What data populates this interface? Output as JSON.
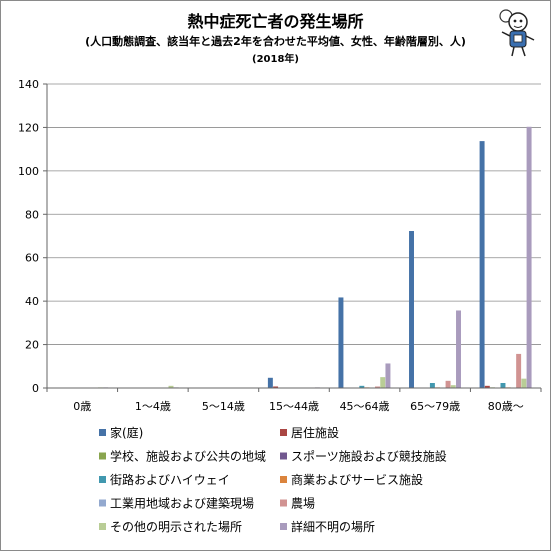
{
  "chart_data": {
    "type": "bar",
    "title": "熱中症死亡者の発生場所",
    "subtitle": "(人口動態調査、該当年と過去2年を合わせた平均値、女性、年齢階層別、人)",
    "subtitle2": "(2018年)",
    "categories": [
      "0歳",
      "1〜4歳",
      "5〜14歳",
      "15〜44歳",
      "45〜64歳",
      "65〜79歳",
      "80歳〜"
    ],
    "ylim": [
      0,
      140
    ],
    "yticks": [
      0,
      20,
      40,
      60,
      80,
      100,
      120,
      140
    ],
    "grid": true,
    "legend_position": "bottom",
    "series": [
      {
        "name": "家(庭)",
        "color": "#4572a7",
        "values": [
          0,
          0,
          0,
          4.7,
          41.7,
          72.3,
          113.7
        ]
      },
      {
        "name": "居住施設",
        "color": "#aa4643",
        "values": [
          0,
          0,
          0,
          0.7,
          0,
          0,
          1.0
        ]
      },
      {
        "name": "学校、施設および公共の地域",
        "color": "#89a54e",
        "values": [
          0,
          0,
          0,
          0,
          0,
          0,
          0.3
        ]
      },
      {
        "name": "スポーツ施設および競技施設",
        "color": "#71588f",
        "values": [
          0,
          0,
          0,
          0,
          0,
          0,
          0
        ]
      },
      {
        "name": "街路およびハイウェイ",
        "color": "#4198af",
        "values": [
          0,
          0,
          0,
          0,
          1.0,
          2.3,
          2.3
        ]
      },
      {
        "name": "商業およびサービス施設",
        "color": "#db843d",
        "values": [
          0,
          0,
          0,
          0,
          0.3,
          0.3,
          0.3
        ]
      },
      {
        "name": "工業用地域および建築現場",
        "color": "#93a9cf",
        "values": [
          0,
          0,
          0,
          0,
          0,
          0,
          0
        ]
      },
      {
        "name": "農場",
        "color": "#d19392",
        "values": [
          0,
          0,
          0,
          0,
          0.7,
          3.3,
          15.7
        ]
      },
      {
        "name": "その他の明示された場所",
        "color": "#b9cd96",
        "values": [
          0.3,
          1.0,
          0,
          0,
          5.0,
          1.3,
          4.3
        ]
      },
      {
        "name": "詳細不明の場所",
        "color": "#a99bbd",
        "values": [
          0.3,
          0.3,
          0,
          0.3,
          11.3,
          35.7,
          120.3
        ]
      }
    ]
  }
}
